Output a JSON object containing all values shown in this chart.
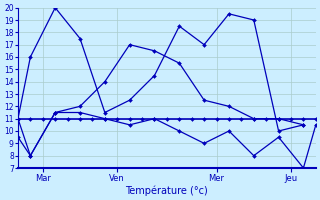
{
  "title": "Température (°c)",
  "background_color": "#cceeff",
  "grid_color": "#aacccc",
  "line_color": "#0000bb",
  "xlim": [
    0,
    24
  ],
  "ylim": [
    7,
    20
  ],
  "yticks": [
    7,
    8,
    9,
    10,
    11,
    12,
    13,
    14,
    15,
    16,
    17,
    18,
    19,
    20
  ],
  "xtick_positions": [
    2,
    8,
    16,
    22
  ],
  "xtick_labels": [
    "Mar",
    "Ven",
    "Mer",
    "Jeu"
  ],
  "series": [
    {
      "x": [
        0,
        1,
        2,
        3,
        4,
        5,
        6,
        7,
        8,
        9,
        10,
        11,
        12,
        13,
        14,
        15,
        16,
        17,
        18,
        19,
        20,
        21,
        22,
        23,
        24
      ],
      "y": [
        11.0,
        11.0,
        11.0,
        11.0,
        11.0,
        11.0,
        11.0,
        11.0,
        11.0,
        11.0,
        11.0,
        11.0,
        11.0,
        11.0,
        11.0,
        11.0,
        11.0,
        11.0,
        11.0,
        11.0,
        11.0,
        11.0,
        11.0,
        11.0,
        11.0
      ]
    },
    {
      "x": [
        0,
        1,
        3,
        5,
        7,
        9,
        11,
        13,
        15,
        17,
        19,
        21,
        23
      ],
      "y": [
        11.0,
        16.0,
        20.0,
        17.5,
        11.5,
        12.5,
        14.5,
        18.5,
        17.0,
        19.5,
        19.0,
        10.0,
        10.5
      ]
    },
    {
      "x": [
        0,
        1,
        3,
        5,
        7,
        9,
        11,
        13,
        15,
        17,
        19,
        21,
        23
      ],
      "y": [
        11.0,
        8.0,
        11.5,
        12.0,
        14.0,
        17.0,
        16.5,
        15.5,
        12.5,
        12.0,
        11.0,
        11.0,
        10.5
      ]
    },
    {
      "x": [
        0,
        1,
        3,
        5,
        7,
        9,
        11,
        13,
        15,
        17,
        19,
        21,
        23,
        24
      ],
      "y": [
        9.5,
        8.0,
        11.5,
        11.5,
        11.0,
        10.5,
        11.0,
        10.0,
        9.0,
        10.0,
        8.0,
        9.5,
        7.0,
        10.5
      ]
    }
  ]
}
